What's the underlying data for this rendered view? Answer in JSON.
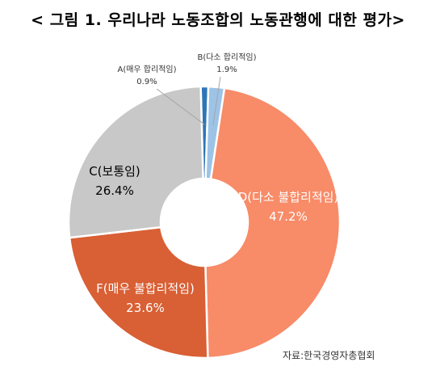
{
  "title": "< 그림 1. 우리나라 노동조합의 노동관행에 대한 평가>",
  "source": "자료:한국경영자총협회",
  "chart_data": {
    "type": "pie",
    "donut": true,
    "title": "< 그림 1. 우리나라 노동조합의 노동관행에 대한 평가>",
    "categories": [
      "A(매우 합리적임)",
      "B(다소 합리적임)",
      "D(다소 불합리적임)",
      "F(매우 불합리적임)",
      "C(보통임)"
    ],
    "values": [
      0.9,
      1.9,
      47.2,
      23.6,
      26.4
    ],
    "value_labels": [
      "0.9%",
      "1.9%",
      "47.2%",
      "23.6%",
      "26.4%"
    ],
    "colors": [
      "#2e75b6",
      "#9dc3e6",
      "#f88b68",
      "#d95f34",
      "#c8c8c8"
    ],
    "label_colors": [
      "#333333",
      "#333333",
      "#ffffff",
      "#ffffff",
      "#000000"
    ],
    "source": "자료:한국경영자총협회"
  }
}
